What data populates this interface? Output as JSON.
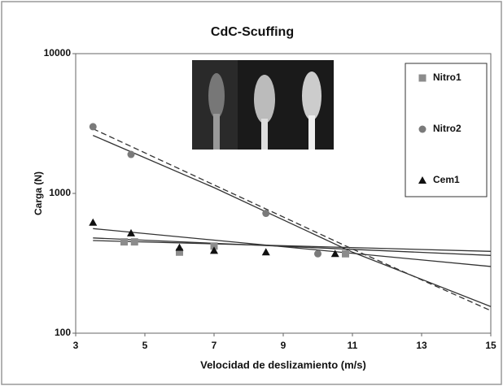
{
  "chart_data": {
    "type": "scatter",
    "title": "CdC-Scuffing",
    "x_label": "Velocidad de deslizamiento (m/s)",
    "y_label": "Carga (N)",
    "xlim": [
      3,
      15
    ],
    "xticks": [
      3,
      5,
      7,
      9,
      11,
      13,
      15
    ],
    "ylim": [
      100,
      10000
    ],
    "yticks": [
      100,
      1000,
      10000
    ],
    "y_log": true,
    "series": [
      {
        "name": "Nitro1",
        "color": "#8c8c8c",
        "marker": "square",
        "x": [
          4.4,
          4.7,
          6.0,
          7.0,
          10.8
        ],
        "values": [
          450,
          450,
          380,
          420,
          370
        ]
      },
      {
        "name": "Nitro2",
        "color": "#7a7a7a",
        "marker": "circle",
        "x": [
          3.5,
          4.6,
          8.5,
          10.0
        ],
        "values": [
          3000,
          1900,
          720,
          370
        ]
      },
      {
        "name": "Cem1",
        "color": "#111111",
        "marker": "triangle",
        "x": [
          3.5,
          4.6,
          6.0,
          7.0,
          8.5,
          10.5
        ],
        "values": [
          620,
          520,
          410,
          390,
          380,
          370
        ]
      }
    ],
    "trendlines": [
      {
        "color": "#333333",
        "x": [
          3.5,
          15
        ],
        "values": [
          480,
          360
        ]
      },
      {
        "color": "#333333",
        "dashed": true,
        "x": [
          3.5,
          7,
          11,
          15
        ],
        "values": [
          2900,
          1150,
          400,
          145
        ]
      },
      {
        "color": "#333333",
        "x": [
          3.5,
          7,
          11,
          15
        ],
        "values": [
          2600,
          1100,
          380,
          155
        ]
      },
      {
        "color": "#333333",
        "x": [
          3.5,
          15
        ],
        "values": [
          560,
          300
        ]
      },
      {
        "color": "#333333",
        "x": [
          3.5,
          15
        ],
        "values": [
          460,
          385
        ]
      }
    ],
    "legend": "right"
  }
}
